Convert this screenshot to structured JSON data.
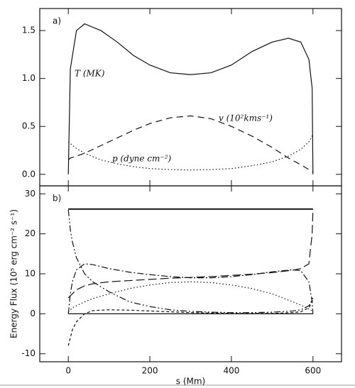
{
  "chart_data": [
    {
      "type": "line",
      "panel_label": "a)",
      "x": [
        0,
        5,
        20,
        40,
        80,
        120,
        160,
        200,
        250,
        300,
        350,
        400,
        450,
        500,
        540,
        570,
        590,
        598,
        600
      ],
      "xlim": [
        -70,
        670
      ],
      "xticks": [
        0,
        200,
        400,
        600
      ],
      "show_xtick_labels": false,
      "ylim": [
        -0.12,
        1.73
      ],
      "yticks": [
        {
          "value": 0,
          "label": "0.0"
        },
        {
          "value": 0.5,
          "label": "0.5"
        },
        {
          "value": 1,
          "label": "1.0"
        },
        {
          "value": 1.5,
          "label": "1.5"
        }
      ],
      "series": [
        {
          "color": "#111111",
          "dash": "solid",
          "values": [
            0,
            1.1,
            1.5,
            1.57,
            1.5,
            1.38,
            1.24,
            1.14,
            1.06,
            1.04,
            1.06,
            1.14,
            1.28,
            1.38,
            1.42,
            1.38,
            1.2,
            0.9,
            0
          ]
        },
        {
          "color": "#111111",
          "dash": "dashed",
          "values": [
            0.15,
            0.17,
            0.19,
            0.22,
            0.3,
            0.38,
            0.46,
            0.53,
            0.59,
            0.61,
            0.58,
            0.5,
            0.4,
            0.28,
            0.17,
            0.1,
            0.05,
            0.03,
            0.02
          ]
        },
        {
          "color": "#111111",
          "dash": "dotted",
          "values": [
            0.34,
            0.32,
            0.27,
            0.22,
            0.15,
            0.11,
            0.08,
            0.06,
            0.05,
            0.045,
            0.05,
            0.06,
            0.09,
            0.13,
            0.19,
            0.26,
            0.34,
            0.4,
            0.42
          ]
        }
      ],
      "annotations": [
        "T (MK)",
        "v (10²kms⁻¹)",
        "p (dyne cm⁻²)"
      ]
    },
    {
      "type": "line",
      "panel_label": "b)",
      "x": [
        0,
        5,
        10,
        20,
        40,
        60,
        100,
        150,
        200,
        250,
        300,
        350,
        400,
        450,
        500,
        550,
        570,
        590,
        598,
        600
      ],
      "xlim": [
        -70,
        670
      ],
      "xticks": [
        0,
        200,
        400,
        600
      ],
      "show_xtick_labels": true,
      "xlabel": "s (Mm)",
      "ylabel": "Energy Flux (10⁵ erg cm⁻² s⁻¹)",
      "ylim": [
        -12,
        32
      ],
      "yticks": [
        -10,
        0,
        10,
        20,
        30
      ],
      "series": [
        {
          "color": "#111111",
          "dash": "solid",
          "width": 2,
          "values": [
            26.2,
            26.2,
            26.2,
            26.2,
            26.2,
            26.2,
            26.2,
            26.2,
            26.2,
            26.2,
            26.2,
            26.2,
            26.2,
            26.2,
            26.2,
            26.2,
            26.2,
            26.2,
            26.2,
            26.2
          ]
        },
        {
          "color": "#111111",
          "dash": "solid",
          "values": [
            0,
            0,
            0,
            0,
            0,
            0,
            0,
            0,
            0,
            0,
            0,
            0,
            0,
            0,
            0,
            0,
            0,
            0,
            0,
            0
          ]
        },
        {
          "color": "#111111",
          "dash": "longdash",
          "values": [
            4,
            4.5,
            5,
            6,
            7,
            7.5,
            8,
            8.3,
            8.6,
            8.9,
            9.1,
            9.3,
            9.6,
            9.9,
            10.3,
            10.9,
            11.3,
            12.5,
            20,
            26
          ]
        },
        {
          "color": "#111111",
          "dash": "dashdot",
          "values": [
            0,
            5,
            8,
            11,
            12.5,
            12.3,
            11.3,
            10.4,
            9.8,
            9.3,
            9,
            9,
            9.3,
            9.8,
            10.5,
            11,
            10.8,
            8,
            3,
            0
          ]
        },
        {
          "color": "#111111",
          "dash": "dashdotdot",
          "values": [
            26,
            21,
            18,
            14,
            10,
            8,
            5.5,
            3,
            1.8,
            1,
            0.6,
            0.4,
            0.3,
            0.3,
            0.4,
            0.7,
            1,
            2,
            3.5,
            4.5
          ]
        },
        {
          "color": "#111111",
          "dash": "dotted",
          "values": [
            0.5,
            1,
            1.5,
            2,
            3,
            3.8,
            5,
            6.3,
            7.2,
            7.8,
            8,
            7.8,
            7.2,
            6.3,
            5,
            3,
            2.2,
            1.2,
            0.7,
            0.5
          ]
        },
        {
          "color": "#111111",
          "dash": "shortdash",
          "values": [
            -8,
            -6,
            -4,
            -2,
            0,
            0.8,
            1,
            0.9,
            0.7,
            0.5,
            0.3,
            0.2,
            0.1,
            0.1,
            0.1,
            0.3,
            0.5,
            1.5,
            3,
            4
          ]
        }
      ]
    }
  ]
}
